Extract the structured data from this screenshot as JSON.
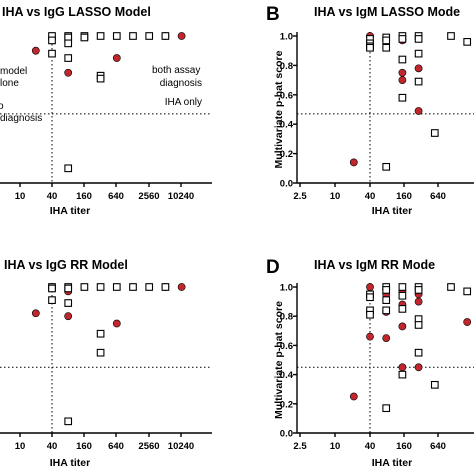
{
  "chart_data": [
    {
      "panel_letter": "",
      "type": "scatter",
      "title": "IHA vs IgG LASSO Model",
      "xlabel": "IHA titer",
      "ylabel": "",
      "x_scale": "log",
      "x_ticks": [
        "10",
        "40",
        "160",
        "640",
        "2560",
        "10240"
      ],
      "y_ticks": [],
      "annotations": [
        "model",
        "lone",
        "o",
        "diagnosis",
        "both assay",
        "diagnosis",
        "IHA only"
      ],
      "series": [
        {
          "marker": "circle",
          "points": [
            [
              20,
              0.9
            ],
            [
              80,
              0.75
            ],
            [
              80,
              0.96
            ],
            [
              640,
              0.85
            ],
            [
              5120,
              1.0
            ],
            [
              10240,
              1.0
            ]
          ]
        },
        {
          "marker": "square",
          "points": [
            [
              40,
              1.0
            ],
            [
              40,
              0.97
            ],
            [
              40,
              0.88
            ],
            [
              80,
              1.0
            ],
            [
              80,
              0.99
            ],
            [
              80,
              0.95
            ],
            [
              80,
              0.85
            ],
            [
              80,
              0.1
            ],
            [
              160,
              1.0
            ],
            [
              160,
              0.99
            ],
            [
              320,
              0.73
            ],
            [
              320,
              0.71
            ],
            [
              320,
              1.0
            ],
            [
              640,
              1.0
            ],
            [
              1280,
              1.0
            ],
            [
              2560,
              1.0
            ],
            [
              5120,
              1.0
            ]
          ]
        }
      ]
    },
    {
      "panel_letter": "B",
      "type": "scatter",
      "title": "IHA vs IgM LASSO Mode",
      "xlabel": "IHA titer",
      "ylabel": "Multivariate p-hat score",
      "x_scale": "log",
      "x_ticks": [
        "2.5",
        "10",
        "40",
        "160",
        "640"
      ],
      "y_ticks": [
        "0.0",
        "0.2",
        "0.4",
        "0.6",
        "0.8",
        "1.0"
      ],
      "annotations": [],
      "series": [
        {
          "marker": "circle",
          "points": [
            [
              20,
              0.14
            ],
            [
              40,
              1.0
            ],
            [
              80,
              0.97
            ],
            [
              160,
              0.97
            ],
            [
              160,
              0.75
            ],
            [
              160,
              0.7
            ],
            [
              320,
              0.78
            ],
            [
              320,
              0.49
            ]
          ]
        },
        {
          "marker": "square",
          "points": [
            [
              40,
              0.98
            ],
            [
              40,
              0.95
            ],
            [
              40,
              0.93
            ],
            [
              40,
              0.92
            ],
            [
              80,
              0.99
            ],
            [
              80,
              0.97
            ],
            [
              80,
              0.92
            ],
            [
              80,
              0.11
            ],
            [
              160,
              1.0
            ],
            [
              160,
              0.98
            ],
            [
              160,
              0.84
            ],
            [
              160,
              0.58
            ],
            [
              320,
              1.0
            ],
            [
              320,
              0.98
            ],
            [
              320,
              0.88
            ],
            [
              320,
              0.69
            ],
            [
              640,
              0.34
            ],
            [
              1280,
              1.0
            ],
            [
              2560,
              0.96
            ]
          ]
        }
      ]
    },
    {
      "panel_letter": "",
      "type": "scatter",
      "title": "IHA vs IgG RR Model",
      "xlabel": "IHA titer",
      "ylabel": "",
      "x_scale": "log",
      "x_ticks": [
        "10",
        "40",
        "160",
        "640",
        "2560",
        "10240"
      ],
      "y_ticks": [],
      "annotations": [],
      "series": [
        {
          "marker": "circle",
          "points": [
            [
              20,
              0.82
            ],
            [
              80,
              0.8
            ],
            [
              80,
              0.97
            ],
            [
              640,
              0.75
            ],
            [
              5120,
              1.0
            ],
            [
              10240,
              1.0
            ]
          ]
        },
        {
          "marker": "square",
          "points": [
            [
              40,
              1.0
            ],
            [
              40,
              0.99
            ],
            [
              40,
              0.91
            ],
            [
              80,
              1.0
            ],
            [
              80,
              0.99
            ],
            [
              80,
              0.89
            ],
            [
              80,
              0.08
            ],
            [
              160,
              1.0
            ],
            [
              320,
              0.68
            ],
            [
              320,
              0.55
            ],
            [
              320,
              1.0
            ],
            [
              640,
              1.0
            ],
            [
              1280,
              1.0
            ],
            [
              2560,
              1.0
            ],
            [
              5120,
              1.0
            ]
          ]
        }
      ]
    },
    {
      "panel_letter": "D",
      "type": "scatter",
      "title": "IHA vs IgM RR Mode",
      "xlabel": "IHA titer",
      "ylabel": "Multivariate p-hat score",
      "x_scale": "log",
      "x_ticks": [
        "2.5",
        "10",
        "40",
        "160",
        "640"
      ],
      "y_ticks": [
        "0.0",
        "0.2",
        "0.4",
        "0.6",
        "0.8",
        "1.0"
      ],
      "annotations": [],
      "series": [
        {
          "marker": "circle",
          "points": [
            [
              20,
              0.25
            ],
            [
              40,
              1.0
            ],
            [
              40,
              0.66
            ],
            [
              80,
              0.98
            ],
            [
              80,
              0.95
            ],
            [
              80,
              0.83
            ],
            [
              80,
              0.65
            ],
            [
              160,
              0.97
            ],
            [
              160,
              0.88
            ],
            [
              160,
              0.73
            ],
            [
              160,
              0.45
            ],
            [
              320,
              0.95
            ],
            [
              320,
              0.9
            ],
            [
              320,
              0.45
            ],
            [
              2560,
              0.76
            ]
          ]
        },
        {
          "marker": "square",
          "points": [
            [
              40,
              0.95
            ],
            [
              40,
              0.93
            ],
            [
              40,
              0.84
            ],
            [
              40,
              0.81
            ],
            [
              80,
              1.0
            ],
            [
              80,
              0.98
            ],
            [
              80,
              0.91
            ],
            [
              80,
              0.84
            ],
            [
              80,
              0.17
            ],
            [
              160,
              1.0
            ],
            [
              160,
              0.94
            ],
            [
              160,
              0.85
            ],
            [
              160,
              0.4
            ],
            [
              320,
              1.0
            ],
            [
              320,
              0.98
            ],
            [
              320,
              0.78
            ],
            [
              320,
              0.74
            ],
            [
              320,
              0.55
            ],
            [
              640,
              0.33
            ],
            [
              1280,
              1.0
            ],
            [
              2560,
              0.97
            ]
          ]
        }
      ]
    }
  ]
}
